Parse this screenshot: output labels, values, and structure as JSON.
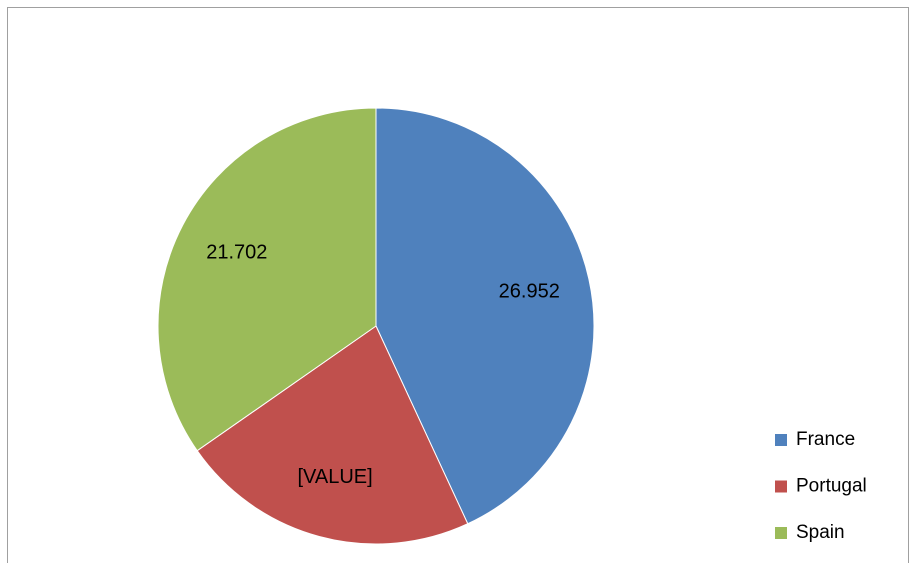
{
  "chart_data": {
    "type": "pie",
    "categories": [
      "France",
      "Portugal",
      "Spain"
    ],
    "values": [
      26.952,
      13.9,
      21.702
    ],
    "value_labels": [
      "26.952",
      "[VALUE]",
      "21.702"
    ],
    "colors": [
      "#4f81bd",
      "#c0504d",
      "#9bbb59"
    ],
    "legend": "right"
  }
}
